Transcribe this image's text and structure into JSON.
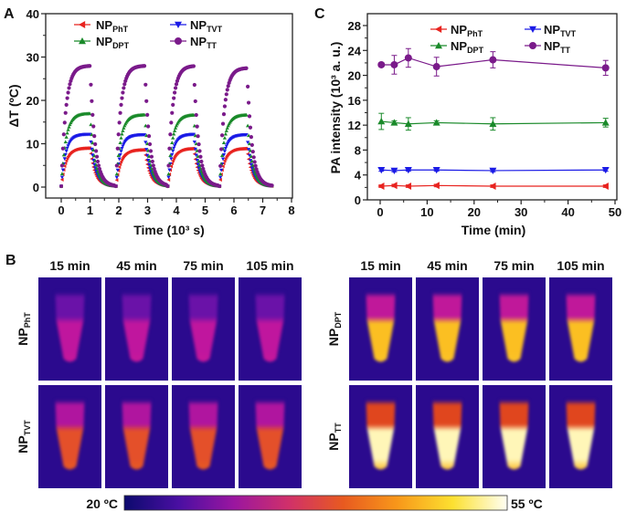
{
  "panels": {
    "a": "A",
    "b": "B",
    "c": "C"
  },
  "series_names": [
    {
      "base": "NP",
      "sub": "PhT",
      "color": "#e8231f",
      "marker": "triangle-left"
    },
    {
      "base": "NP",
      "sub": "TVT",
      "color": "#1a1ae6",
      "marker": "triangle-down"
    },
    {
      "base": "NP",
      "sub": "DPT",
      "color": "#1a8a2a",
      "marker": "triangle-up"
    },
    {
      "base": "NP",
      "sub": "TT",
      "color": "#7a1a8a",
      "marker": "circle"
    }
  ],
  "chart_data": [
    {
      "type": "scatter",
      "panel": "A",
      "xlabel": "Time (10³ s)",
      "ylabel": "ΔT (ºC)",
      "xlim": [
        0,
        8
      ],
      "ylim": [
        0,
        40
      ],
      "xticks": [
        0,
        1,
        2,
        3,
        4,
        5,
        6,
        7,
        8
      ],
      "yticks": [
        0,
        10,
        20,
        30,
        40
      ],
      "legend": "top",
      "cycles": [
        {
          "laser_on": 0.0,
          "laser_off": 1.0,
          "end": 1.85
        },
        {
          "laser_on": 1.9,
          "laser_off": 2.9,
          "end": 3.65
        },
        {
          "laser_on": 3.7,
          "laser_off": 4.6,
          "end": 5.45
        },
        {
          "laser_on": 5.5,
          "laser_off": 6.45,
          "end": 7.35
        }
      ],
      "series": [
        {
          "name": "NPPhT",
          "plateau_per_cycle": [
            8.8,
            8.4,
            8.7,
            8.7
          ]
        },
        {
          "name": "NPTVT",
          "plateau_per_cycle": [
            12.0,
            11.9,
            12.0,
            11.9
          ]
        },
        {
          "name": "NPDPT",
          "plateau_per_cycle": [
            16.8,
            16.5,
            16.5,
            16.5
          ]
        },
        {
          "name": "NPTT",
          "plateau_per_cycle": [
            27.8,
            27.8,
            27.8,
            27.3
          ]
        }
      ]
    },
    {
      "type": "line",
      "panel": "C",
      "xlabel": "Time (min)",
      "ylabel": "PA intensity (10³ a. u.)",
      "xlim": [
        0,
        50
      ],
      "ylim": [
        0,
        28
      ],
      "xticks": [
        0,
        10,
        20,
        30,
        40,
        50
      ],
      "yticks": [
        0,
        4,
        8,
        12,
        16,
        20,
        24,
        28
      ],
      "legend": "top",
      "x": [
        0.25,
        3,
        6,
        12,
        24,
        48
      ],
      "series": [
        {
          "name": "NPPhT",
          "values": [
            2.2,
            2.3,
            2.2,
            2.3,
            2.2,
            2.2
          ],
          "errors": [
            0.2,
            0.2,
            0.2,
            0.2,
            0.2,
            0.2
          ]
        },
        {
          "name": "NPTVT",
          "values": [
            4.8,
            4.7,
            4.8,
            4.8,
            4.7,
            4.8
          ],
          "errors": [
            0.2,
            0.2,
            0.2,
            0.2,
            0.2,
            0.2
          ]
        },
        {
          "name": "NPDPT",
          "values": [
            12.6,
            12.4,
            12.2,
            12.4,
            12.2,
            12.4
          ],
          "errors": [
            1.3,
            0.3,
            1.0,
            0.3,
            1.0,
            0.7
          ]
        },
        {
          "name": "NPTT",
          "values": [
            21.7,
            21.7,
            22.8,
            21.4,
            22.5,
            21.2
          ],
          "errors": [
            0.3,
            1.5,
            1.5,
            1.5,
            1.3,
            1.2
          ]
        }
      ]
    }
  ],
  "thermal": {
    "time_labels": [
      "15 min",
      "45 min",
      "75 min",
      "105 min"
    ],
    "background": "#2b0a8e",
    "groups": [
      {
        "rows": [
          {
            "base": "NP",
            "sub": "PhT",
            "top": "#6a12a8",
            "body": "#c0169e",
            "tip": "#c8189a"
          },
          {
            "base": "NP",
            "sub": "TVT",
            "top": "#b0159f",
            "body": "#e4502a",
            "tip": "#e85a22"
          }
        ]
      },
      {
        "rows": [
          {
            "base": "NP",
            "sub": "DPT",
            "top": "#c0189a",
            "body": "#fbbf22",
            "tip": "#fcc428"
          },
          {
            "base": "NP",
            "sub": "TT",
            "top": "#e0461e",
            "body": "#fff6b8",
            "tip": "#fcc030"
          }
        ]
      }
    ],
    "colorbar": {
      "min_label": "20 ºC",
      "max_label": "55 ºC",
      "stops": [
        "#0c0a6e",
        "#4a0fa2",
        "#9a16a0",
        "#d0306a",
        "#e85a20",
        "#f8981a",
        "#fce030",
        "#fffff4"
      ]
    }
  }
}
